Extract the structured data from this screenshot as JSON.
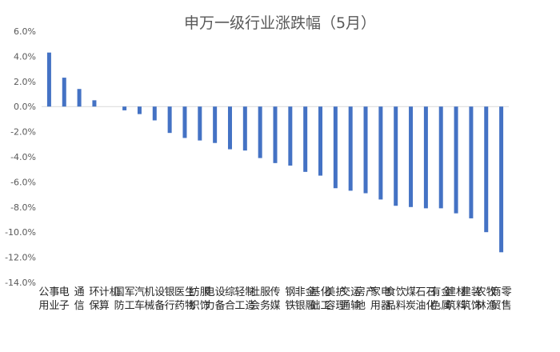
{
  "chart_data": {
    "type": "bar",
    "title": "申万一级行业涨跌幅（5月）",
    "xlabel": "",
    "ylabel": "",
    "ylim": [
      -14,
      6
    ],
    "yticks": [
      6,
      4,
      2,
      0,
      -2,
      -4,
      -6,
      -8,
      -10,
      -12,
      -14
    ],
    "ytick_labels": [
      "6.0%",
      "4.0%",
      "2.0%",
      "0.0%",
      "-2.0%",
      "-4.0%",
      "-6.0%",
      "-8.0%",
      "-10.0%",
      "-12.0%",
      "-14.0%"
    ],
    "grid": false,
    "legend": "none",
    "bar_color": "#4472C4",
    "categories": [
      "公用事业",
      "电子",
      "通信",
      "环保",
      "计算机",
      "国防军工",
      "汽车",
      "机械设备",
      "银行",
      "医药生物",
      "纺织服饰",
      "电力设备",
      "综合",
      "轻工制造",
      "社会服务",
      "传媒",
      "钢铁",
      "非银金融",
      "基础化工",
      "美容护理",
      "交通运输",
      "房地产",
      "家用电器",
      "食品饮料",
      "煤炭",
      "石油石化",
      "有色金属",
      "建筑材料",
      "建筑装饰",
      "农林牧渔",
      "商贸零售"
    ],
    "values": [
      4.3,
      2.3,
      1.4,
      0.5,
      0.0,
      -0.3,
      -0.6,
      -1.1,
      -2.1,
      -2.5,
      -2.7,
      -2.9,
      -3.4,
      -3.5,
      -4.1,
      -4.5,
      -4.7,
      -5.2,
      -5.5,
      -6.5,
      -6.7,
      -6.9,
      -7.4,
      -7.9,
      -8.0,
      -8.1,
      -8.1,
      -8.5,
      -8.9,
      -10.0,
      -11.6
    ]
  }
}
